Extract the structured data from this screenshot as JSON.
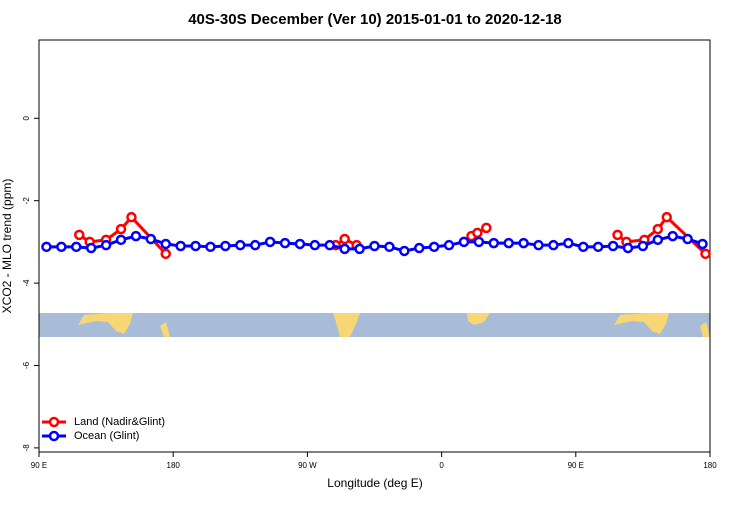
{
  "chart_data": {
    "type": "line",
    "title": "40S-30S December (Ver 10)   2015-01-01 to 2020-12-18",
    "x_label": "Longitude (deg E)",
    "y_label": "XCO2 - MLO trend (ppm)",
    "xlim": [
      90,
      540
    ],
    "ylim": [
      -8.1,
      1.9
    ],
    "xticks": [
      {
        "value": 90,
        "label": "90 E"
      },
      180,
      {
        "value": 270,
        "label": "90 W"
      },
      {
        "value": 360,
        "label": "0"
      },
      {
        "value": 450,
        "label": "90 E"
      },
      {
        "value": 540,
        "label": "180"
      }
    ],
    "yticks": [
      -8,
      -6,
      -4,
      -2,
      0
    ],
    "legend": "bottom-left",
    "series": [
      {
        "name": "Land (Nadir&Glint)",
        "color": "#ff0000",
        "x": [
          117,
          124,
          135,
          145,
          152,
          175,
          230,
          289,
          295,
          303,
          340,
          380,
          384,
          390,
          430,
          478,
          484,
          496,
          505,
          511,
          537
        ],
        "values": [
          -2.83,
          -3.0,
          -2.95,
          -2.69,
          -2.4,
          -3.29,
          null,
          -3.08,
          -2.93,
          -3.08,
          null,
          -2.86,
          -2.78,
          -2.66,
          null,
          -2.83,
          -3.0,
          -2.95,
          -2.69,
          -2.4,
          -3.29
        ]
      },
      {
        "name": "Ocean (Glint)",
        "color": "#0000ff",
        "x": [
          95,
          105,
          115,
          125,
          135,
          145,
          155,
          165,
          175,
          185,
          195,
          205,
          215,
          225,
          235,
          245,
          255,
          265,
          275,
          285,
          295,
          305,
          315,
          325,
          335,
          345,
          355,
          365,
          375,
          385,
          395,
          405,
          415,
          425,
          435,
          445,
          455,
          465,
          475,
          485,
          495,
          505,
          515,
          525,
          535
        ],
        "values": [
          -3.12,
          -3.12,
          -3.12,
          -3.15,
          -3.08,
          -2.95,
          -2.86,
          -2.93,
          -3.05,
          -3.1,
          -3.1,
          -3.12,
          -3.1,
          -3.08,
          -3.08,
          -3.0,
          -3.03,
          -3.05,
          -3.08,
          -3.08,
          -3.17,
          -3.17,
          -3.1,
          -3.12,
          -3.22,
          -3.15,
          -3.12,
          -3.08,
          -3.0,
          -3.0,
          -3.03,
          -3.03,
          -3.03,
          -3.08,
          -3.08,
          -3.03,
          -3.12,
          -3.12,
          -3.1,
          -3.15,
          -3.1,
          -2.95,
          -2.86,
          -2.93,
          -3.05
        ]
      }
    ]
  }
}
